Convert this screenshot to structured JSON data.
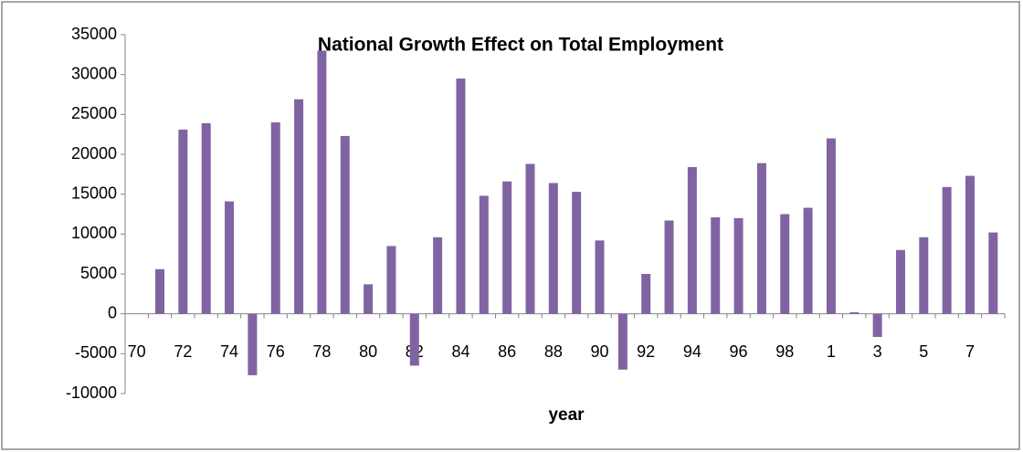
{
  "chart_data": {
    "type": "bar",
    "title": "National Growth Effect on Total Employment",
    "x_label": "year",
    "categories": [
      "70",
      null,
      "72",
      null,
      "74",
      null,
      "76",
      null,
      "78",
      null,
      "80",
      null,
      "82",
      null,
      "84",
      null,
      "86",
      null,
      "88",
      null,
      "90",
      null,
      "92",
      null,
      "94",
      null,
      "96",
      null,
      "98",
      null,
      "1",
      null,
      "3",
      null,
      "5",
      null,
      "7",
      null
    ],
    "values": [
      null,
      5600,
      23100,
      23900,
      14100,
      -7700,
      24000,
      26900,
      33000,
      22300,
      3700,
      8500,
      -6500,
      9600,
      29500,
      14800,
      16600,
      18800,
      16400,
      15300,
      9200,
      -7000,
      5000,
      11700,
      18400,
      12100,
      12000,
      18900,
      12500,
      13300,
      22000,
      200,
      -2900,
      8000,
      9600,
      15900,
      17300,
      10200
    ],
    "color": "#8064a2",
    "ylim": [
      -10000,
      35000
    ],
    "yticks": [
      -10000,
      -5000,
      0,
      5000,
      10000,
      15000,
      20000,
      25000,
      30000,
      35000
    ]
  }
}
